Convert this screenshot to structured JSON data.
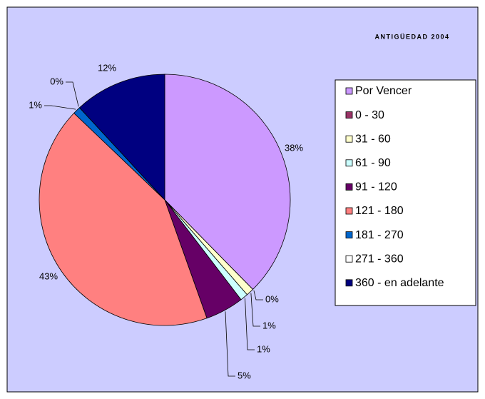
{
  "chart_data": {
    "type": "pie",
    "title": "ANTIGÜEDAD 2004",
    "categories": [
      "Por Vencer",
      "0 - 30",
      "31 - 60",
      "61 - 90",
      "91 - 120",
      "121 - 180",
      "181 - 270",
      "271 - 360",
      "360 - en adelante"
    ],
    "values": [
      38,
      0,
      1,
      1,
      5,
      43,
      1,
      0,
      12
    ],
    "value_labels": [
      "38%",
      "0%",
      "1%",
      "1%",
      "5%",
      "43%",
      "1%",
      "0%",
      "12%"
    ],
    "colors": [
      "#cc99ff",
      "#993366",
      "#ffffcc",
      "#ccffff",
      "#660066",
      "#ff8080",
      "#0066cc",
      "#ffffff",
      "#000080"
    ],
    "legend": "right"
  }
}
